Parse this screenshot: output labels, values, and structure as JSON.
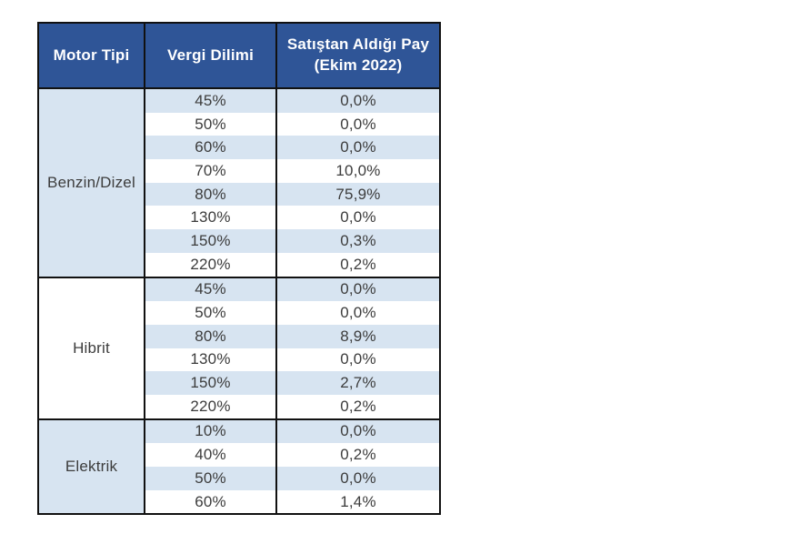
{
  "colors": {
    "header_bg": "#2F5597",
    "header_text": "#FFFFFF",
    "band_blue": "#D7E4F1",
    "row_white": "#FFFFFF",
    "border": "#111111",
    "text": "#3C3C3C"
  },
  "chart_data": {
    "type": "table",
    "columns": [
      "Motor Tipi",
      "Vergi Dilimi",
      "Satıştan Aldığı Pay (Ekim 2022)"
    ],
    "groups": [
      {
        "motor_tipi": "Benzin/Dizel",
        "rows": [
          {
            "vergi_dilimi": "45%",
            "pay": "0,0%"
          },
          {
            "vergi_dilimi": "50%",
            "pay": "0,0%"
          },
          {
            "vergi_dilimi": "60%",
            "pay": "0,0%"
          },
          {
            "vergi_dilimi": "70%",
            "pay": "10,0%"
          },
          {
            "vergi_dilimi": "80%",
            "pay": "75,9%"
          },
          {
            "vergi_dilimi": "130%",
            "pay": "0,0%"
          },
          {
            "vergi_dilimi": "150%",
            "pay": "0,3%"
          },
          {
            "vergi_dilimi": "220%",
            "pay": "0,2%"
          }
        ]
      },
      {
        "motor_tipi": "Hibrit",
        "rows": [
          {
            "vergi_dilimi": "45%",
            "pay": "0,0%"
          },
          {
            "vergi_dilimi": "50%",
            "pay": "0,0%"
          },
          {
            "vergi_dilimi": "80%",
            "pay": "8,9%"
          },
          {
            "vergi_dilimi": "130%",
            "pay": "0,0%"
          },
          {
            "vergi_dilimi": "150%",
            "pay": "2,7%"
          },
          {
            "vergi_dilimi": "220%",
            "pay": "0,2%"
          }
        ]
      },
      {
        "motor_tipi": "Elektrik",
        "rows": [
          {
            "vergi_dilimi": "10%",
            "pay": "0,0%"
          },
          {
            "vergi_dilimi": "40%",
            "pay": "0,2%"
          },
          {
            "vergi_dilimi": "50%",
            "pay": "0,0%"
          },
          {
            "vergi_dilimi": "60%",
            "pay": "1,4%"
          }
        ]
      }
    ]
  }
}
